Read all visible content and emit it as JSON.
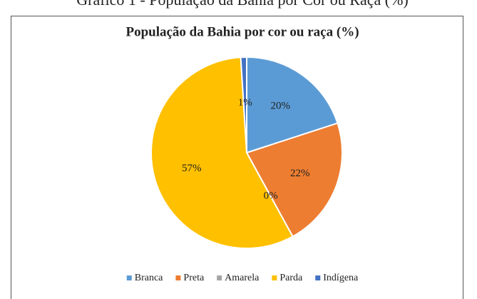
{
  "caption": "Gráfico 1 - População da Bahia por Cor ou Raça (%)",
  "chart_data": {
    "type": "pie",
    "title": "População da Bahia por cor ou raça (%)",
    "categories": [
      "Branca",
      "Preta",
      "Amarela",
      "Parda",
      "Indígena"
    ],
    "values": [
      20,
      22,
      0,
      57,
      1
    ],
    "value_labels": [
      "20%",
      "22%",
      "0%",
      "57%",
      "1%"
    ],
    "colors": [
      "#5b9bd5",
      "#ed7d31",
      "#a5a5a5",
      "#ffc000",
      "#4472c4"
    ],
    "legend": "bottom"
  }
}
